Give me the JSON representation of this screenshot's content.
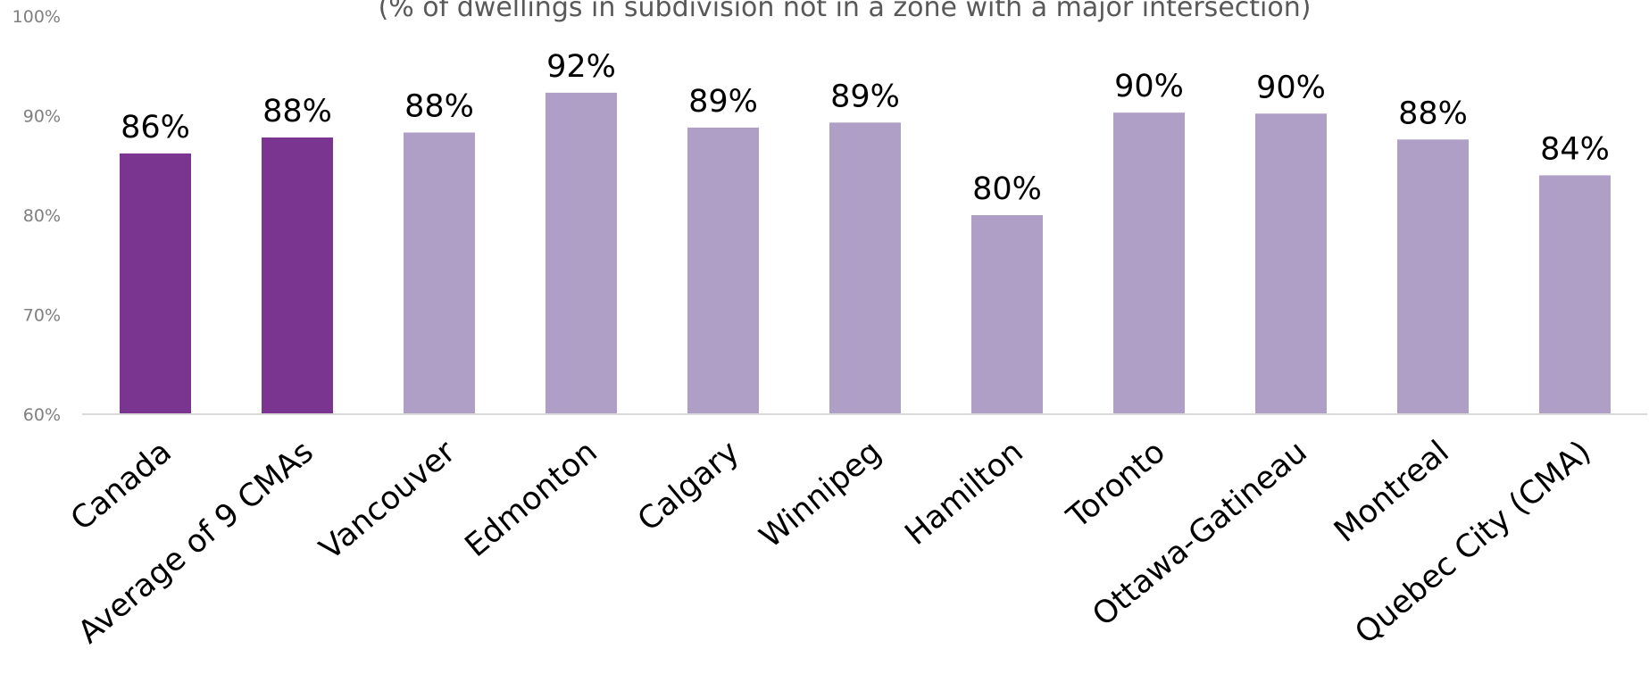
{
  "chart_data": {
    "type": "bar",
    "subtitle": "(% of dwellings in subdivision not in a zone with a major intersection)",
    "categories": [
      "Canada",
      "Average of 9 CMAs",
      "Vancouver",
      "Edmonton",
      "Calgary",
      "Winnipeg",
      "Hamilton",
      "Toronto",
      "Ottawa-Gatineau",
      "Montreal",
      "Quebec City (CMA)"
    ],
    "values": [
      86.2,
      87.8,
      88.3,
      92.3,
      88.8,
      89.3,
      80.0,
      90.3,
      90.2,
      87.6,
      84.0
    ],
    "data_labels": [
      "86%",
      "88%",
      "88%",
      "92%",
      "89%",
      "89%",
      "80%",
      "90%",
      "90%",
      "88%",
      "84%"
    ],
    "ylim": [
      60,
      100
    ],
    "yticks": [
      60,
      70,
      80,
      90,
      100
    ],
    "ytick_labels": [
      "60%",
      "70%",
      "80%",
      "90%",
      "100%"
    ],
    "xlabel": "",
    "ylabel": "",
    "grid": false,
    "legend": "none",
    "colors": {
      "highlight": "#7a3590",
      "normal": "#af9ec6",
      "axis": "#d9d9d9"
    },
    "highlighted": [
      "Canada",
      "Average of 9 CMAs"
    ]
  }
}
